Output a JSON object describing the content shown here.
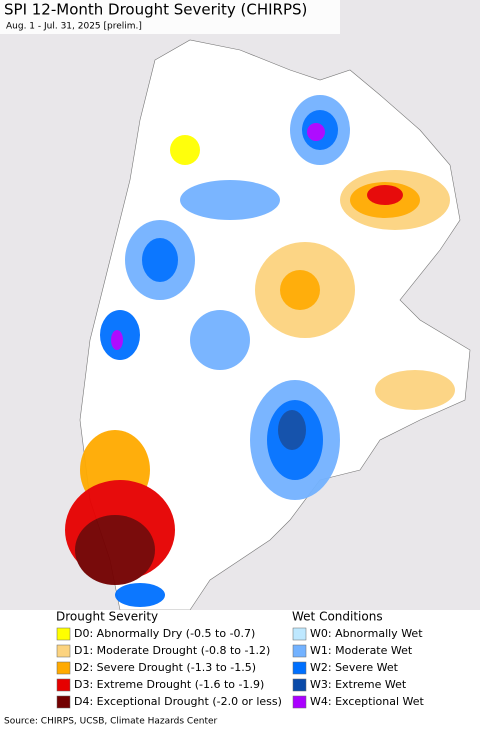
{
  "header": {
    "title": "SPI 12-Month Drought Severity (CHIRPS)",
    "subtitle": "Aug. 1 - Jul. 31, 2025 [prelim.]"
  },
  "legend": {
    "drought": {
      "title": "Drought Severity",
      "items": [
        {
          "label": "D0: Abnormally Dry (-0.5 to -0.7)",
          "color": "#ffff00"
        },
        {
          "label": "D1: Moderate Drought (-0.8 to -1.2)",
          "color": "#fcd37f"
        },
        {
          "label": "D2: Severe Drought (-1.3 to -1.5)",
          "color": "#ffaa00"
        },
        {
          "label": "D3: Extreme Drought (-1.6 to -1.9)",
          "color": "#e60000"
        },
        {
          "label": "D4: Exceptional Drought (-2.0 or less)",
          "color": "#730000"
        }
      ]
    },
    "wet": {
      "title": "Wet Conditions",
      "items": [
        {
          "label": "W0: Abnormally Wet",
          "color": "#bee8ff"
        },
        {
          "label": "W1: Moderate Wet",
          "color": "#73b2ff"
        },
        {
          "label": "W2: Severe Wet",
          "color": "#0070ff"
        },
        {
          "label": "W3: Extreme Wet",
          "color": "#0a4aa8"
        },
        {
          "label": "W4: Exceptional Wet",
          "color": "#aa00ff"
        }
      ]
    }
  },
  "footer": {
    "source": "Source: CHIRPS, UCSB, Climate Hazards Center"
  }
}
